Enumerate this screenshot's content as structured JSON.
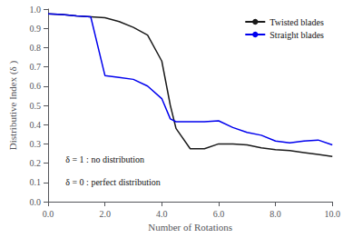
{
  "chart_data": {
    "type": "line",
    "x_label": "Number of Rotations",
    "y_label": "Distributive Index (δ )",
    "x": [
      0.0,
      0.5,
      1.0,
      1.5,
      2.0,
      2.5,
      3.0,
      3.5,
      4.0,
      4.3,
      4.5,
      5.0,
      5.5,
      6.0,
      6.5,
      7.0,
      7.5,
      8.0,
      8.5,
      9.0,
      9.5,
      10.0
    ],
    "series": [
      {
        "name": "Twisted blades",
        "color": "#1a1a1a",
        "values": [
          0.975,
          0.972,
          0.965,
          0.96,
          0.955,
          0.935,
          0.905,
          0.865,
          0.73,
          0.5,
          0.38,
          0.275,
          0.275,
          0.3,
          0.3,
          0.295,
          0.28,
          0.27,
          0.265,
          0.255,
          0.245,
          0.235
        ]
      },
      {
        "name": "Straight blades",
        "color": "#0000ee",
        "values": [
          0.975,
          0.972,
          0.965,
          0.96,
          0.655,
          0.645,
          0.635,
          0.6,
          0.535,
          0.43,
          0.415,
          0.415,
          0.415,
          0.42,
          0.385,
          0.36,
          0.345,
          0.315,
          0.305,
          0.315,
          0.32,
          0.295
        ]
      }
    ],
    "xlim": [
      0,
      10
    ],
    "ylim": [
      0,
      1
    ],
    "xticks": [
      {
        "value": 0,
        "label": "0.0"
      },
      {
        "value": 2,
        "label": "2.0"
      },
      {
        "value": 4,
        "label": "4.0"
      },
      {
        "value": 6,
        "label": "6.0"
      },
      {
        "value": 8,
        "label": "8.0"
      },
      {
        "value": 10,
        "label": "10.0"
      }
    ],
    "yticks": [
      {
        "value": 0,
        "label": "0.0"
      },
      0.1,
      0.2,
      0.3,
      0.4,
      0.5,
      0.6,
      0.7,
      0.8,
      0.9,
      {
        "value": 1,
        "label": "1.0"
      }
    ],
    "annotations": [
      "δ = 1 : no distribution",
      "δ = 0 : perfect distribution"
    ],
    "legend": "upper right",
    "grid": false
  }
}
